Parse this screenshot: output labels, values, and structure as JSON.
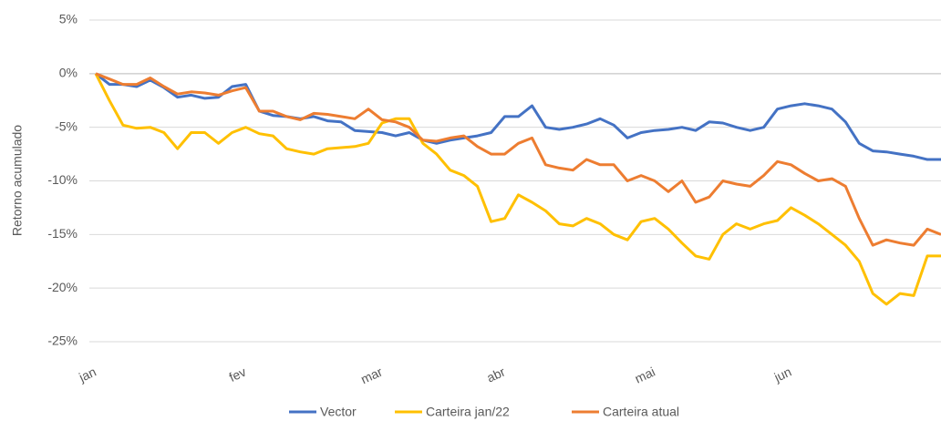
{
  "chart_data": {
    "type": "line",
    "y_label": "Retorno acumulado",
    "categories": [
      "jan",
      null,
      null,
      null,
      null,
      null,
      null,
      null,
      null,
      null,
      null,
      "fev",
      null,
      null,
      null,
      null,
      null,
      null,
      null,
      null,
      null,
      "mar",
      null,
      null,
      null,
      null,
      null,
      null,
      null,
      null,
      "abr",
      null,
      null,
      null,
      null,
      null,
      null,
      null,
      null,
      null,
      null,
      "mai",
      null,
      null,
      null,
      null,
      null,
      null,
      null,
      null,
      null,
      "jun",
      null,
      null,
      null,
      null,
      null,
      null,
      null,
      null,
      null,
      null,
      null
    ],
    "series": [
      {
        "name": "Vector",
        "color": "#4472c4",
        "values": [
          0,
          -1.0,
          -1.0,
          -1.2,
          -0.6,
          -1.3,
          -2.2,
          -2.0,
          -2.3,
          -2.2,
          -1.2,
          -1.0,
          -3.5,
          -3.9,
          -4.0,
          -4.2,
          -4.0,
          -4.4,
          -4.5,
          -5.3,
          -5.4,
          -5.5,
          -5.8,
          -5.5,
          -6.2,
          -6.5,
          -6.2,
          -6.0,
          -5.8,
          -5.5,
          -4.0,
          -4.0,
          -3.0,
          -5.0,
          -5.2,
          -5.0,
          -4.7,
          -4.2,
          -4.8,
          -6.0,
          -5.5,
          -5.3,
          -5.2,
          -5.0,
          -5.3,
          -4.5,
          -4.6,
          -5.0,
          -5.3,
          -5.0,
          -3.3,
          -3.0,
          -2.8,
          -3.0,
          -3.3,
          -4.5,
          -6.5,
          -7.2,
          -7.3,
          -7.5,
          -7.7,
          -8.0,
          -8.0
        ]
      },
      {
        "name": "Carteira jan/22",
        "color": "#ffc000",
        "values": [
          0,
          -2.5,
          -4.8,
          -5.1,
          -5.0,
          -5.5,
          -7.0,
          -5.5,
          -5.5,
          -6.5,
          -5.5,
          -5.0,
          -5.6,
          -5.8,
          -7.0,
          -7.3,
          -7.5,
          -7.0,
          -6.9,
          -6.8,
          -6.5,
          -4.6,
          -4.2,
          -4.2,
          -6.5,
          -7.5,
          -9.0,
          -9.5,
          -10.5,
          -13.8,
          -13.5,
          -11.3,
          -12.0,
          -12.8,
          -14.0,
          -14.2,
          -13.5,
          -14.0,
          -15.0,
          -15.5,
          -13.8,
          -13.5,
          -14.5,
          -15.8,
          -17.0,
          -17.3,
          -15.0,
          -14.0,
          -14.5,
          -14.0,
          -13.7,
          -12.5,
          -13.2,
          -14.0,
          -15.0,
          -16.0,
          -17.5,
          -20.5,
          -21.5,
          -20.5,
          -20.7,
          -17.0,
          -17.0
        ]
      },
      {
        "name": "Carteira atual",
        "color": "#ed7d31",
        "values": [
          0,
          -0.5,
          -1.0,
          -1.0,
          -0.4,
          -1.2,
          -1.9,
          -1.7,
          -1.8,
          -2.0,
          -1.6,
          -1.3,
          -3.5,
          -3.5,
          -4.0,
          -4.3,
          -3.7,
          -3.8,
          -4.0,
          -4.2,
          -3.3,
          -4.3,
          -4.5,
          -5.0,
          -6.2,
          -6.3,
          -6.0,
          -5.8,
          -6.8,
          -7.5,
          -7.5,
          -6.5,
          -6.0,
          -8.5,
          -8.8,
          -9.0,
          -8.0,
          -8.5,
          -8.5,
          -10.0,
          -9.5,
          -10.0,
          -11.0,
          -10.0,
          -12.0,
          -11.5,
          -10.0,
          -10.3,
          -10.5,
          -9.5,
          -8.2,
          -8.5,
          -9.3,
          -10.0,
          -9.8,
          -10.5,
          -13.5,
          -16.0,
          -15.5,
          -15.8,
          -16.0,
          -14.5,
          -15.0
        ]
      }
    ],
    "ylim": [
      -25,
      5
    ],
    "yticks": [
      {
        "value": 5,
        "label": "5%"
      },
      {
        "value": 0,
        "label": "0%"
      },
      {
        "value": -5,
        "label": "-5%"
      },
      {
        "value": -10,
        "label": "-10%"
      },
      {
        "value": -15,
        "label": "-15%"
      },
      {
        "value": -20,
        "label": "-20%"
      },
      {
        "value": -25,
        "label": "-25%"
      }
    ],
    "grid": true,
    "legend": "bottom"
  }
}
